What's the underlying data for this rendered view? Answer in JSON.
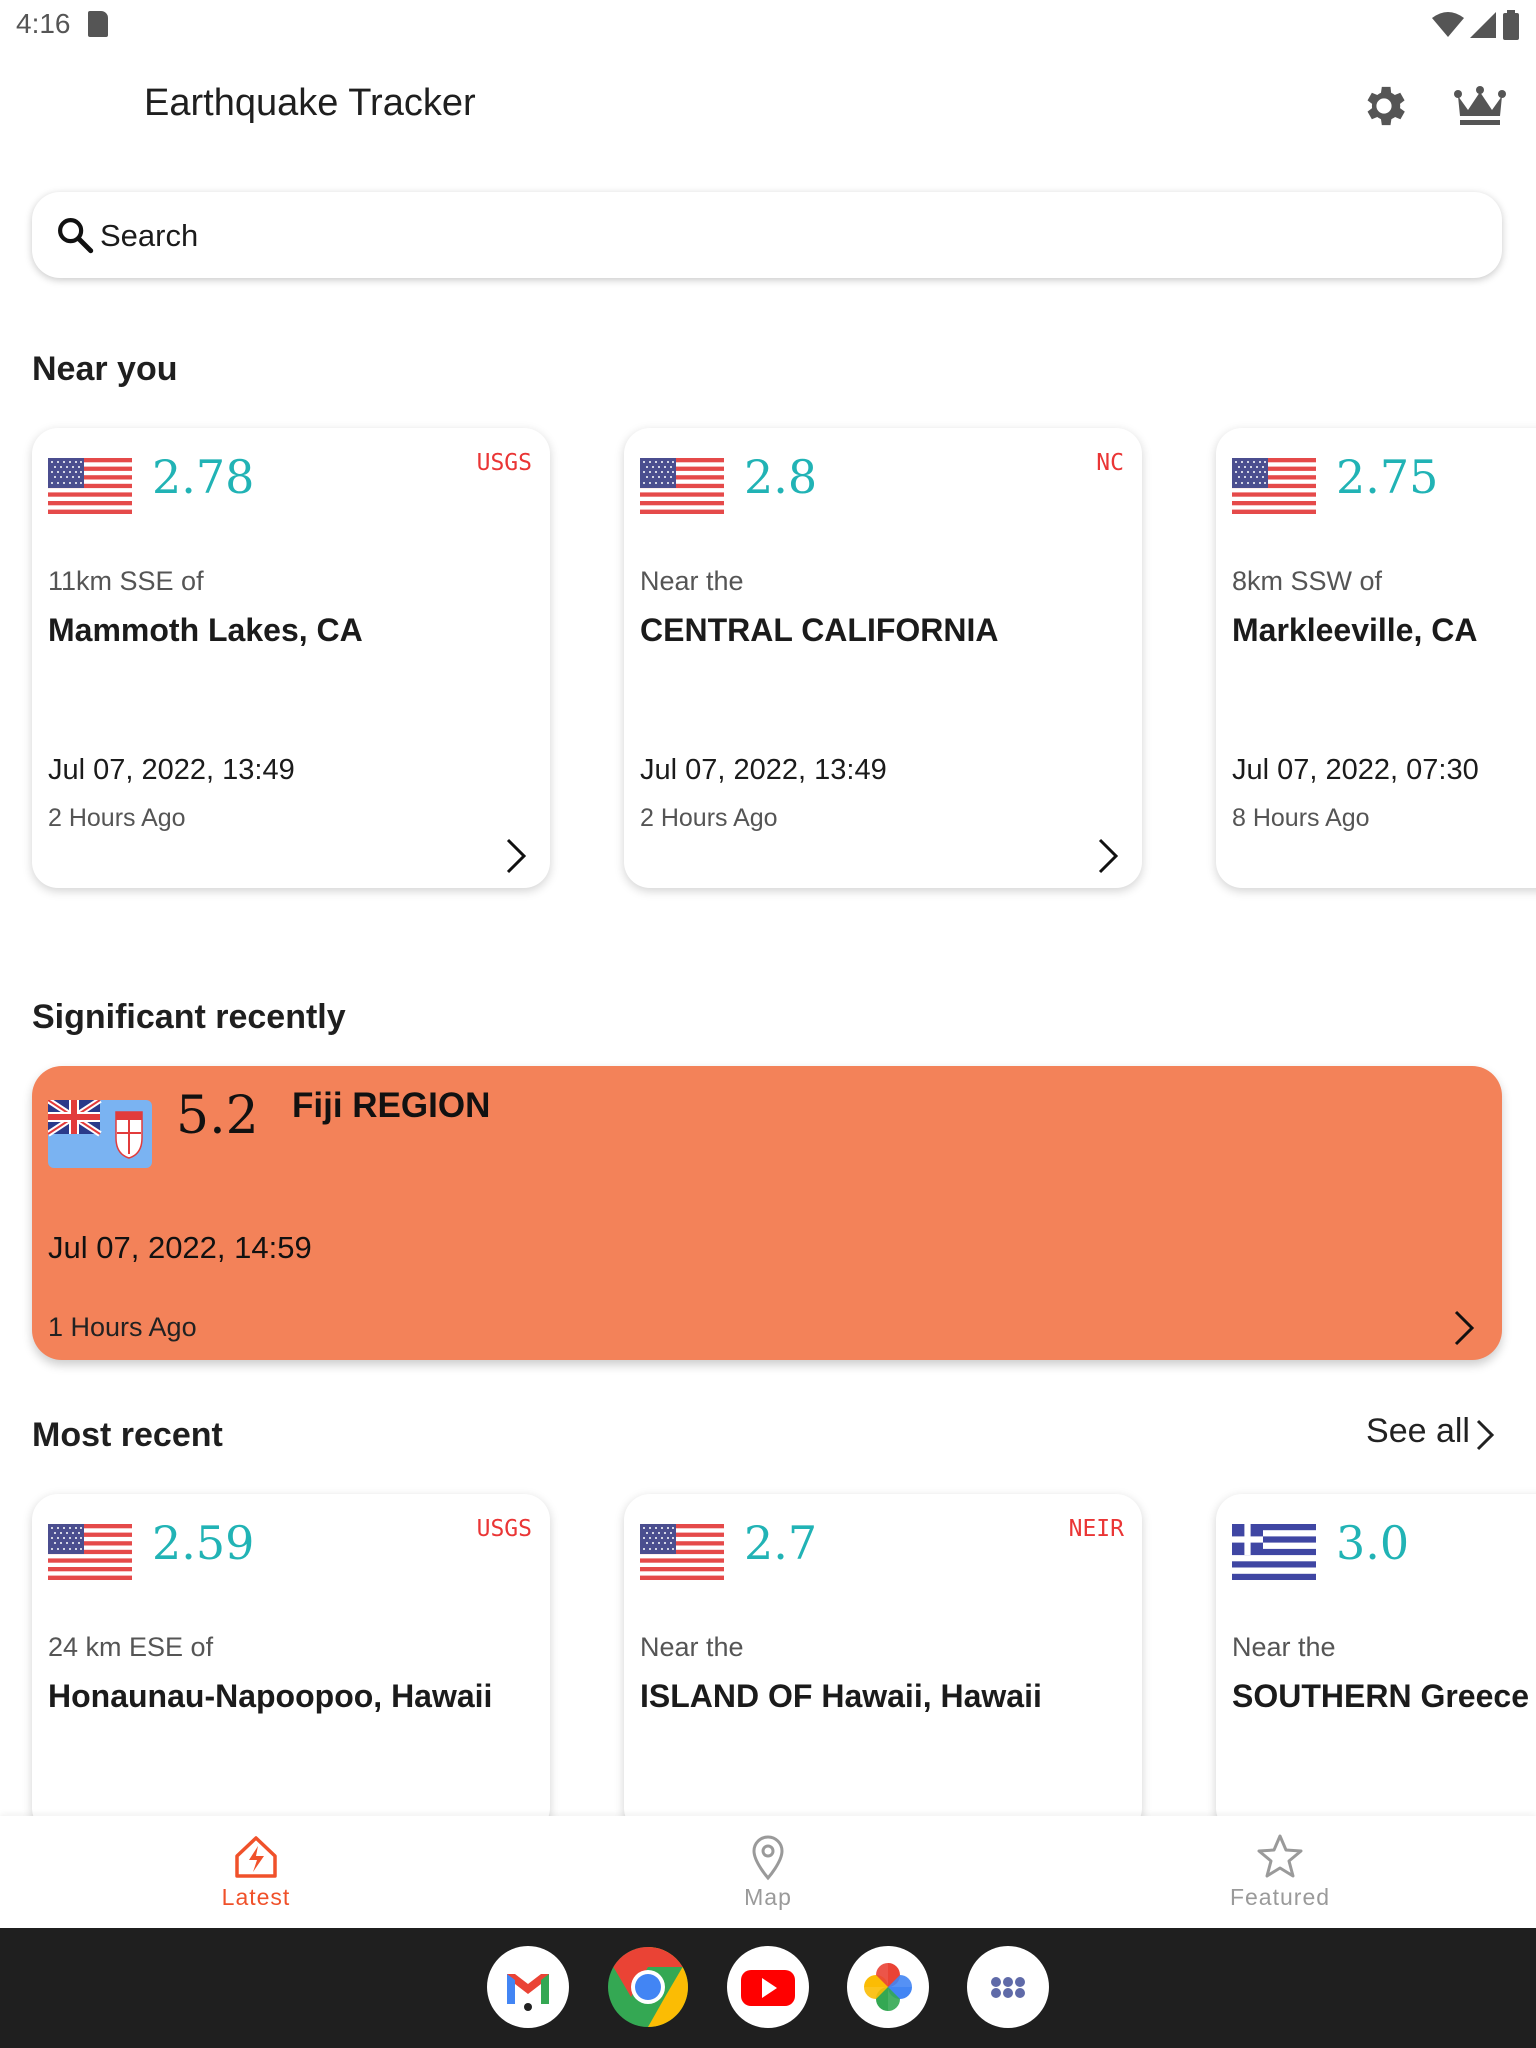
{
  "status_bar": {
    "time": "4:16"
  },
  "app_bar": {
    "title": "Earthquake Tracker"
  },
  "search": {
    "placeholder": "Search"
  },
  "near_you": {
    "title": "Near you",
    "cards": [
      {
        "flag": "usa-flag",
        "magnitude": "2.78",
        "source": "USGS",
        "distance": "11km SSE of",
        "place": "Mammoth Lakes, CA",
        "date": "Jul 07, 2022, 13:49",
        "ago": "2 Hours Ago"
      },
      {
        "flag": "usa-flag",
        "magnitude": "2.8",
        "source": "NC",
        "distance": "Near the",
        "place": "CENTRAL CALIFORNIA",
        "date": "Jul 07, 2022, 13:49",
        "ago": "2 Hours Ago"
      },
      {
        "flag": "usa-flag",
        "magnitude": "2.75",
        "source": "",
        "distance": "8km SSW of",
        "place": "Markleeville, CA",
        "date": "Jul 07, 2022, 07:30",
        "ago": "8 Hours Ago"
      }
    ]
  },
  "significant": {
    "title": "Significant recently",
    "card": {
      "flag": "fiji-flag",
      "magnitude": "5.2",
      "place": "Fiji REGION",
      "date": "Jul 07, 2022, 14:59",
      "ago": "1 Hours Ago",
      "background": "#f38259"
    }
  },
  "most_recent": {
    "title": "Most recent",
    "see_all": "See all",
    "cards": [
      {
        "flag": "usa-flag",
        "magnitude": "2.59",
        "source": "USGS",
        "distance": "24 km ESE of",
        "place": "Honaunau-Napoopoo, Hawaii"
      },
      {
        "flag": "usa-flag",
        "magnitude": "2.7",
        "source": "NEIR",
        "distance": "Near the",
        "place": "ISLAND OF Hawaii, Hawaii"
      },
      {
        "flag": "greece-flag",
        "magnitude": "3.0",
        "source": "",
        "distance": "Near the",
        "place": "SOUTHERN Greece"
      }
    ]
  },
  "bottom_nav": {
    "items": [
      {
        "label": "Latest",
        "icon": "latest-quake-icon",
        "active": true
      },
      {
        "label": "Map",
        "icon": "map-pin-icon",
        "active": false
      },
      {
        "label": "Featured",
        "icon": "star-icon",
        "active": false
      }
    ]
  },
  "dock": {
    "apps": [
      "gmail-icon",
      "chrome-icon",
      "youtube-icon",
      "photos-icon",
      "app-drawer-icon"
    ]
  },
  "colors": {
    "magnitude": "#21b3b5",
    "source": "#ea3535",
    "active_nav": "#f0512a",
    "inactive_nav": "#9a9a9a",
    "significant_bg": "#f38259"
  }
}
